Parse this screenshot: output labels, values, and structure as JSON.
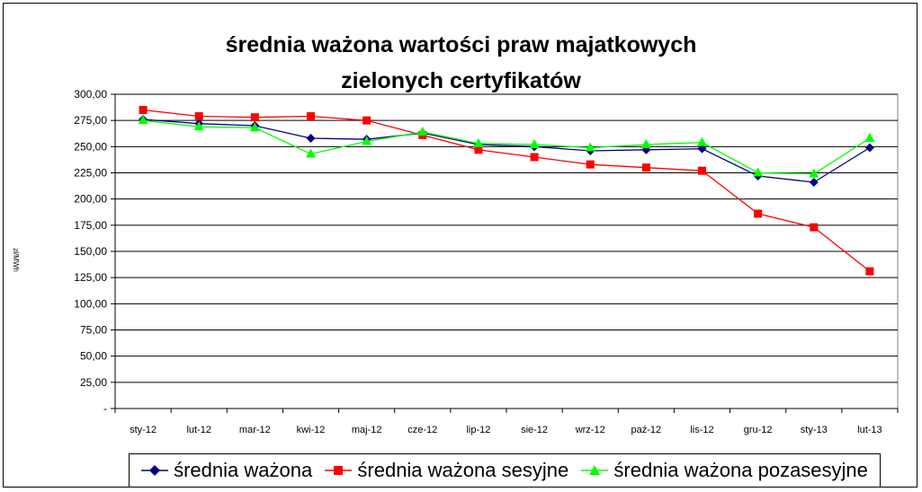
{
  "chart_data": {
    "type": "line",
    "title_lines": [
      "średnia ważona wartości praw majatkowych",
      "zielonych certyfikatów"
    ],
    "ylabel": "zł/MWh",
    "categories": [
      "sty-12",
      "lut-12",
      "mar-12",
      "kwi-12",
      "maj-12",
      "cze-12",
      "lip-12",
      "sie-12",
      "wrz-12",
      "paź-12",
      "lis-12",
      "gru-12",
      "sty-13",
      "lut-13"
    ],
    "ylim": [
      0,
      300
    ],
    "yticks": [
      {
        "v": 0,
        "label": "-"
      },
      {
        "v": 25,
        "label": "25,00"
      },
      {
        "v": 50,
        "label": "50,00"
      },
      {
        "v": 75,
        "label": "75,00"
      },
      {
        "v": 100,
        "label": "100,00"
      },
      {
        "v": 125,
        "label": "125,00"
      },
      {
        "v": 150,
        "label": "150,00"
      },
      {
        "v": 175,
        "label": "175,00"
      },
      {
        "v": 200,
        "label": "200,00"
      },
      {
        "v": 225,
        "label": "225,00"
      },
      {
        "v": 250,
        "label": "250,00"
      },
      {
        "v": 275,
        "label": "275,00"
      },
      {
        "v": 300,
        "label": "300,00"
      }
    ],
    "grid": true,
    "legend_position": "bottom",
    "series": [
      {
        "name": "średnia ważona",
        "color": "#000080",
        "marker": "diamond",
        "values": [
          276,
          272,
          270,
          258,
          257,
          263,
          252,
          250,
          246,
          247,
          248,
          222,
          216,
          249
        ]
      },
      {
        "name": "średnia ważona sesyjne",
        "color": "#ff0000",
        "marker": "square",
        "values": [
          285,
          279,
          278,
          279,
          275,
          261,
          247,
          240,
          233,
          230,
          227,
          186,
          173,
          131
        ]
      },
      {
        "name": "średnia ważona pozasesyjne",
        "color": "#00ff00",
        "marker": "triangle",
        "values": [
          275,
          269,
          268,
          243,
          255,
          264,
          253,
          252,
          249,
          252,
          254,
          225,
          224,
          258
        ]
      }
    ]
  }
}
